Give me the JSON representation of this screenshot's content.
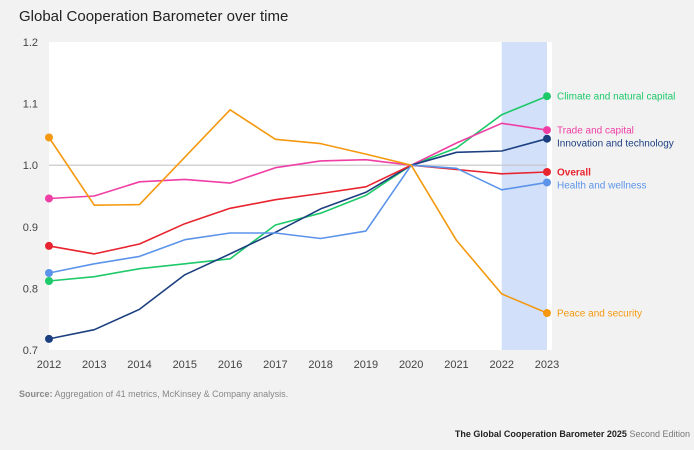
{
  "title": "Global Cooperation Barometer over time",
  "source_label": "Source:",
  "source_text": "Aggregation of 41 metrics, McKinsey & Company analysis.",
  "footer_bold": "The Global Cooperation Barometer 2025",
  "footer_light": "Second Edition",
  "chart_data": {
    "type": "line",
    "title": "Global Cooperation Barometer over time",
    "x": [
      "2012",
      "2013",
      "2014",
      "2015",
      "2016",
      "2017",
      "2018",
      "2019",
      "2020",
      "2021",
      "2022",
      "2023"
    ],
    "ylim": [
      0.7,
      1.2
    ],
    "yticks": [
      "0.7",
      "0.8",
      "0.9",
      "1.0",
      "1.1",
      "1.2"
    ],
    "reference_line": 1.0,
    "highlight_range": [
      "2022",
      "2023"
    ],
    "highlight_color": "#d2e0fa",
    "grid": false,
    "legend": "end-of-line labels",
    "series": [
      {
        "name": "Climate and natural capital",
        "color": "#1ec96a",
        "values": [
          0.812,
          0.819,
          0.832,
          0.84,
          0.848,
          0.903,
          0.922,
          0.951,
          1.0,
          1.028,
          1.082,
          1.112
        ]
      },
      {
        "name": "Trade and capital",
        "color": "#ef3fa4",
        "values": [
          0.946,
          0.95,
          0.973,
          0.977,
          0.971,
          0.996,
          1.007,
          1.009,
          1.0,
          1.036,
          1.068,
          1.057
        ]
      },
      {
        "name": "Innovation and technology",
        "color": "#1c3f80",
        "values": [
          0.718,
          0.733,
          0.766,
          0.822,
          0.856,
          0.891,
          0.929,
          0.956,
          1.0,
          1.021,
          1.023,
          1.043
        ]
      },
      {
        "name": "Overall",
        "color": "#e8242e",
        "values": [
          0.869,
          0.856,
          0.872,
          0.905,
          0.93,
          0.944,
          0.954,
          0.965,
          1.0,
          0.993,
          0.986,
          0.989
        ]
      },
      {
        "name": "Health and wellness",
        "color": "#5c94ea",
        "values": [
          0.825,
          0.84,
          0.852,
          0.879,
          0.89,
          0.89,
          0.881,
          0.893,
          1.0,
          0.995,
          0.96,
          0.972
        ]
      },
      {
        "name": "Peace and security",
        "color": "#f4990f",
        "values": [
          1.045,
          0.935,
          0.936,
          1.013,
          1.09,
          1.042,
          1.035,
          1.018,
          1.0,
          0.878,
          0.791,
          0.76
        ]
      }
    ]
  }
}
